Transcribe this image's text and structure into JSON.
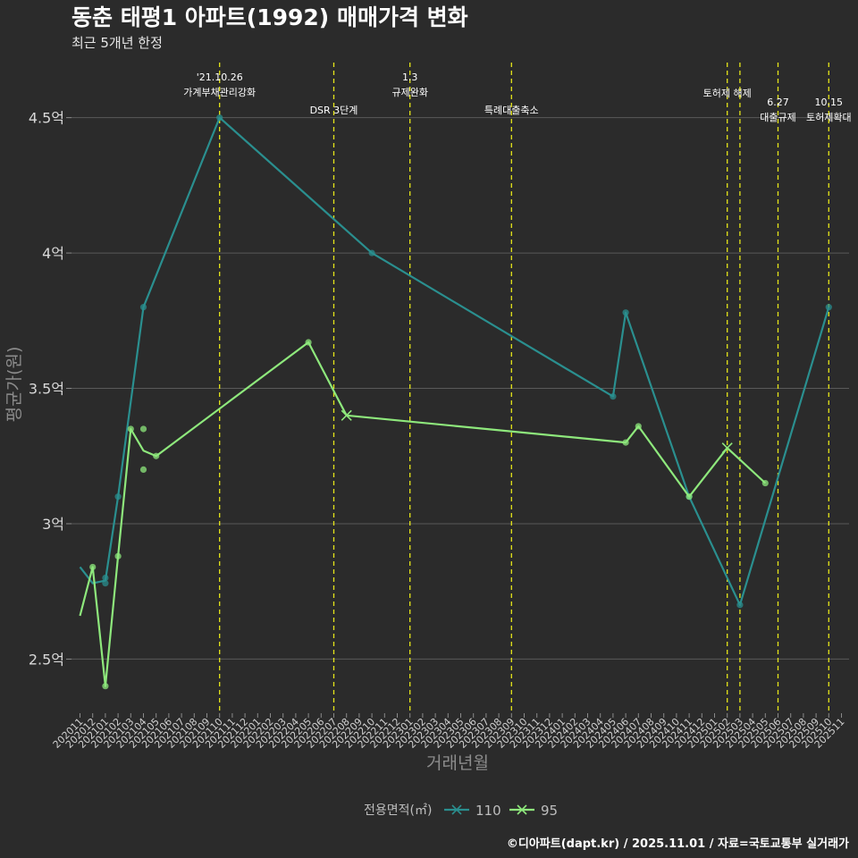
{
  "title": "동춘 태평1 아파트(1992) 매매가격 변화",
  "subtitle": "최근 5개년 한정",
  "caption": "©디아파트(dapt.kr) / 2025.11.01 / 자료=국토교통부 실거래가",
  "colors": {
    "s110": "#2a8f8f",
    "s95": "#8ee87c",
    "grid": "#5a5a5a",
    "event": "#e6e61a",
    "background": "#2b2b2b"
  },
  "chart_data": {
    "type": "line",
    "title": "동춘 태평1 아파트(1992) 매매가격 변화",
    "subtitle": "최근 5개년 한정",
    "xlabel": "거래년월",
    "ylabel": "평균가(원)",
    "ylim": [
      2.3,
      4.72
    ],
    "yticks": [
      2.5,
      3,
      3.5,
      4,
      4.5
    ],
    "ytick_labels": [
      "2.5억",
      "3억",
      "3.5억",
      "4억",
      "4.5억"
    ],
    "x_labels": [
      "202011",
      "202012",
      "202101",
      "202102",
      "202103",
      "202104",
      "202105",
      "202106",
      "202107",
      "202108",
      "202109",
      "202110",
      "202111",
      "202112",
      "202201",
      "202202",
      "202203",
      "202204",
      "202205",
      "202206",
      "202207",
      "202208",
      "202209",
      "202210",
      "202211",
      "202212",
      "202301",
      "202302",
      "202303",
      "202304",
      "202305",
      "202306",
      "202307",
      "202308",
      "202309",
      "202310",
      "202311",
      "202312",
      "202401",
      "202402",
      "202403",
      "202404",
      "202405",
      "202406",
      "202407",
      "202408",
      "202409",
      "202410",
      "202411",
      "202412",
      "202501",
      "202502",
      "202503",
      "202504",
      "202505",
      "202506",
      "202507",
      "202508",
      "202509",
      "202510",
      "202511"
    ],
    "legend_title": "전용면적(㎡)",
    "series": [
      {
        "name": "110",
        "line": [
          [
            0,
            2.84
          ],
          [
            1,
            2.78
          ],
          [
            2,
            2.79
          ],
          [
            3,
            3.1
          ],
          [
            5,
            3.8
          ],
          [
            11,
            4.5
          ],
          [
            23,
            4.0
          ],
          [
            42,
            3.47
          ],
          [
            43,
            3.78
          ],
          [
            48,
            3.1
          ],
          [
            52,
            2.7
          ],
          [
            59,
            3.8
          ]
        ],
        "points": [
          [
            2,
            2.78
          ],
          [
            2,
            2.8
          ],
          [
            3,
            3.1
          ],
          [
            5,
            3.8
          ],
          [
            11,
            4.5
          ],
          [
            23,
            4.0
          ],
          [
            42,
            3.47
          ],
          [
            43,
            3.78
          ],
          [
            48,
            3.1
          ],
          [
            52,
            2.7
          ],
          [
            59,
            3.8
          ]
        ],
        "cross": []
      },
      {
        "name": "95",
        "line": [
          [
            0,
            2.66
          ],
          [
            1,
            2.84
          ],
          [
            2,
            2.4
          ],
          [
            3,
            2.88
          ],
          [
            4,
            3.35
          ],
          [
            5,
            3.27
          ],
          [
            6,
            3.25
          ],
          [
            18,
            3.67
          ],
          [
            21,
            3.4
          ],
          [
            43,
            3.3
          ],
          [
            44,
            3.36
          ],
          [
            48,
            3.1
          ],
          [
            51,
            3.28
          ],
          [
            54,
            3.15
          ]
        ],
        "points": [
          [
            1,
            2.84
          ],
          [
            2,
            2.4
          ],
          [
            3,
            2.88
          ],
          [
            4,
            3.35
          ],
          [
            5,
            3.35
          ],
          [
            5,
            3.2
          ],
          [
            6,
            3.25
          ],
          [
            18,
            3.67
          ],
          [
            43,
            3.3
          ],
          [
            44,
            3.36
          ],
          [
            48,
            3.1
          ],
          [
            54,
            3.15
          ]
        ],
        "cross": [
          [
            21,
            3.4
          ],
          [
            51,
            3.28
          ]
        ]
      }
    ],
    "events": [
      {
        "x": 11,
        "lines": [
          "'21.10.26",
          "가계부채관리강화"
        ],
        "level": 0
      },
      {
        "x": 20,
        "lines": [
          "DSR 3단계"
        ],
        "level": 2
      },
      {
        "x": 26,
        "lines": [
          "1.3",
          "규제완화"
        ],
        "level": 0
      },
      {
        "x": 34,
        "lines": [
          "특례대출축소"
        ],
        "level": 2
      },
      {
        "x": 51,
        "lines": [
          "토허제 해제"
        ],
        "level": 1
      },
      {
        "x": 52,
        "lines": [],
        "level": 1
      },
      {
        "x": 55,
        "lines": [
          "6.27",
          "대출규제"
        ],
        "level": 3
      },
      {
        "x": 59,
        "lines": [
          "10.15",
          "토허제확대"
        ],
        "level": 3
      }
    ]
  }
}
